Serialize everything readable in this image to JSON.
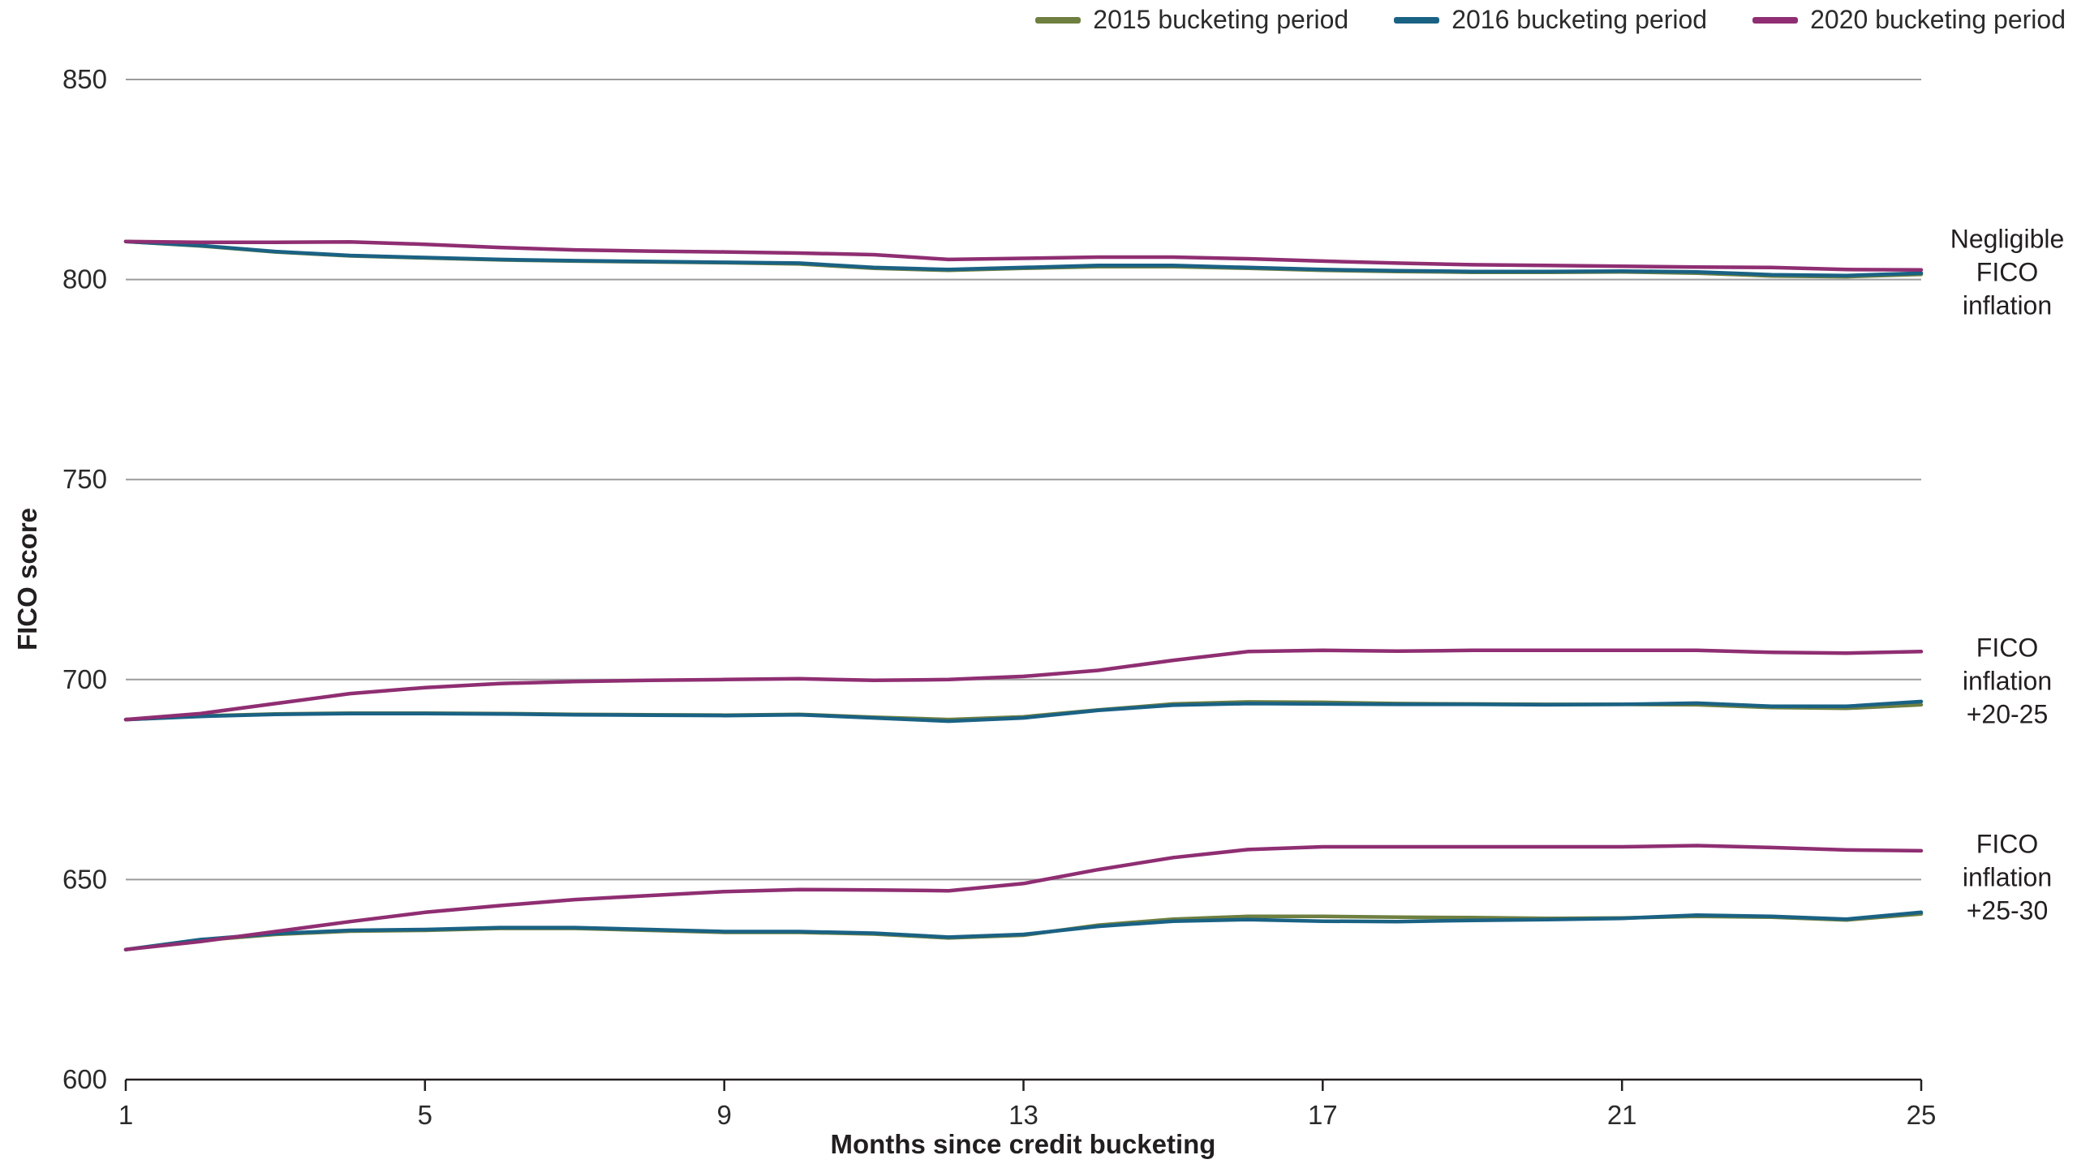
{
  "chart_data": {
    "type": "line",
    "title": "",
    "xlabel": "Months since credit bucketing",
    "ylabel": "FICO score",
    "x": [
      1,
      2,
      3,
      4,
      5,
      6,
      7,
      8,
      9,
      10,
      11,
      12,
      13,
      14,
      15,
      16,
      17,
      18,
      19,
      20,
      21,
      22,
      23,
      24,
      25
    ],
    "xticks": [
      1,
      5,
      9,
      13,
      17,
      21,
      25
    ],
    "ylim": [
      600,
      850
    ],
    "yticks": [
      600,
      650,
      700,
      750,
      800,
      850
    ],
    "grid": "horizontal",
    "legend_position": "top-right",
    "legend": [
      {
        "period": "2015",
        "label": "2015 bucketing period",
        "color": "#6e7f40"
      },
      {
        "period": "2016",
        "label": "2016 bucketing period",
        "color": "#1a6284"
      },
      {
        "period": "2020",
        "label": "2020 bucketing period",
        "color": "#8f2e72"
      }
    ],
    "groups": [
      {
        "id": "negligible",
        "annotation": "Negligible\nFICO\ninflation",
        "series": [
          {
            "period": "2015",
            "name": "2015 bucketing period",
            "values": [
              809.5,
              808.4,
              806.9,
              805.9,
              805.4,
              804.9,
              804.6,
              804.4,
              804.2,
              803.9,
              802.8,
              802.3,
              802.8,
              803.2,
              803.2,
              802.8,
              802.3,
              802.0,
              801.8,
              801.8,
              801.9,
              801.6,
              800.9,
              800.7,
              801.3
            ]
          },
          {
            "period": "2016",
            "name": "2016 bucketing period",
            "values": [
              809.5,
              808.5,
              807.0,
              806.0,
              805.5,
              805.0,
              804.7,
              804.5,
              804.3,
              804.1,
              803.0,
              802.5,
              803.0,
              803.5,
              803.5,
              803.0,
              802.5,
              802.2,
              802.0,
              802.0,
              802.1,
              801.9,
              801.2,
              801.0,
              801.6
            ]
          },
          {
            "period": "2020",
            "name": "2020 bucketing period",
            "values": [
              809.5,
              809.3,
              809.3,
              809.4,
              808.8,
              808.0,
              807.4,
              807.1,
              806.9,
              806.6,
              806.2,
              805.0,
              805.3,
              805.6,
              805.6,
              805.2,
              804.6,
              804.1,
              803.7,
              803.5,
              803.3,
              803.1,
              803.0,
              802.5,
              802.4
            ]
          }
        ]
      },
      {
        "id": "inflation-20-25",
        "annotation": "FICO\ninflation\n+20-25",
        "series": [
          {
            "period": "2015",
            "name": "2015 bucketing period",
            "values": [
              690.0,
              690.9,
              691.4,
              691.6,
              691.6,
              691.5,
              691.3,
              691.2,
              691.1,
              691.3,
              690.6,
              690.0,
              690.7,
              692.4,
              693.9,
              694.4,
              694.3,
              694.0,
              693.9,
              693.8,
              693.8,
              693.7,
              693.0,
              692.8,
              693.7
            ]
          },
          {
            "period": "2016",
            "name": "2016 bucketing period",
            "values": [
              690.0,
              690.8,
              691.3,
              691.5,
              691.5,
              691.4,
              691.2,
              691.1,
              691.0,
              691.2,
              690.4,
              689.6,
              690.4,
              692.3,
              693.6,
              694.0,
              693.9,
              693.8,
              693.8,
              693.7,
              693.8,
              694.1,
              693.3,
              693.3,
              694.5
            ]
          },
          {
            "period": "2020",
            "name": "2020 bucketing period",
            "values": [
              690.0,
              691.5,
              694.0,
              696.5,
              698.0,
              699.0,
              699.5,
              699.8,
              700.0,
              700.2,
              699.8,
              700.0,
              700.8,
              702.3,
              704.8,
              707.0,
              707.3,
              707.1,
              707.3,
              707.3,
              707.3,
              707.3,
              706.8,
              706.6,
              707.0
            ]
          }
        ]
      },
      {
        "id": "inflation-25-30",
        "annotation": "FICO\ninflation\n+25-30",
        "series": [
          {
            "period": "2015",
            "name": "2015 bucketing period",
            "values": [
              632.5,
              634.8,
              636.3,
              637.1,
              637.3,
              637.8,
              637.8,
              637.3,
              636.8,
              636.8,
              636.4,
              635.4,
              636.1,
              638.6,
              640.1,
              640.8,
              640.8,
              640.6,
              640.5,
              640.3,
              640.4,
              640.8,
              640.6,
              639.9,
              641.4
            ]
          },
          {
            "period": "2016",
            "name": "2016 bucketing period",
            "values": [
              632.5,
              635.0,
              636.5,
              637.3,
              637.5,
              638.0,
              638.0,
              637.5,
              637.0,
              637.0,
              636.6,
              635.6,
              636.3,
              638.3,
              639.6,
              640.0,
              639.6,
              639.5,
              639.8,
              640.0,
              640.3,
              641.1,
              640.8,
              640.1,
              641.8
            ]
          },
          {
            "period": "2020",
            "name": "2020 bucketing period",
            "values": [
              632.5,
              634.5,
              637.0,
              639.5,
              641.8,
              643.5,
              645.0,
              646.0,
              647.0,
              647.5,
              647.4,
              647.2,
              649.0,
              652.5,
              655.5,
              657.5,
              658.2,
              658.2,
              658.2,
              658.2,
              658.2,
              658.5,
              658.0,
              657.4,
              657.2
            ]
          }
        ]
      }
    ]
  },
  "colors": {
    "gridline": "#9c9c9c",
    "axis": "#231f20",
    "tick_text": "#2b2b2b"
  }
}
